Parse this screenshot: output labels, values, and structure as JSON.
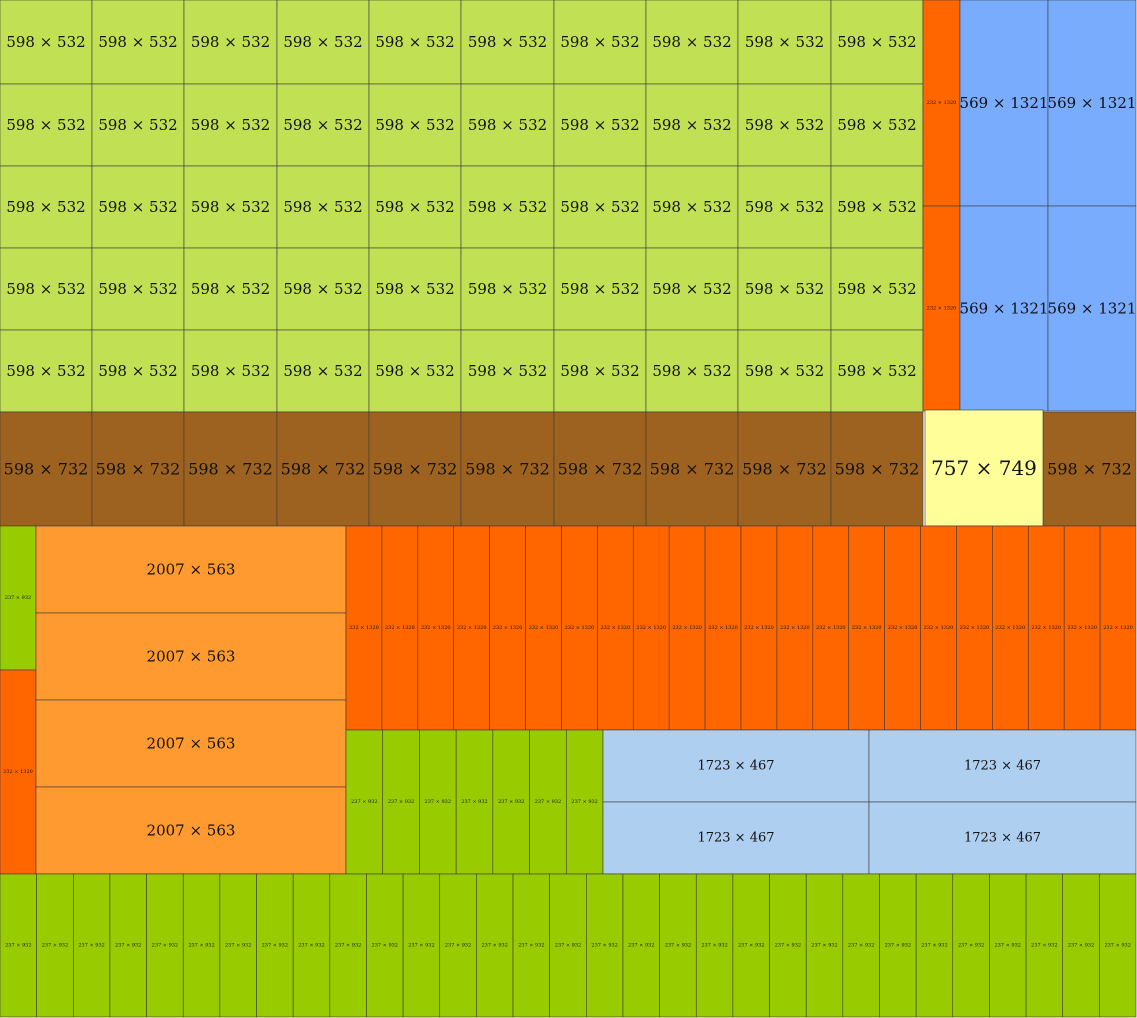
{
  "legend_text": {
    "label_598x532": "598 × 532",
    "label_598x732": "598 × 732",
    "label_569x1321": "569 × 1321",
    "label_232x1320": "232 × 1320",
    "label_757x749": "757 × 749",
    "label_2007x563": "2007 × 563",
    "label_237x932": "237 × 932",
    "label_1723x467": "1723 × 467"
  },
  "colors": {
    "lime": "#c1e053",
    "brown": "#9e6220",
    "orange": "#ff6600",
    "blue": "#7aacfe",
    "yellow": "#fffe99",
    "light_orange": "#fe9a2f",
    "green": "#99cc00",
    "light_blue": "#aecff0"
  },
  "blocks": [
    {
      "name": "grid-598x532",
      "kind": "598x532",
      "count": 50,
      "columns": 10,
      "rows": 5
    },
    {
      "name": "column-232x1320-top",
      "kind": "232x1320",
      "count": 2
    },
    {
      "name": "grid-569x1321",
      "kind": "569x1321",
      "count": 4,
      "columns": 2,
      "rows": 2
    },
    {
      "name": "row-598x732",
      "kind": "598x732",
      "count": 11
    },
    {
      "name": "single-757x749",
      "kind": "757x749",
      "count": 1
    },
    {
      "name": "stack-2007x563",
      "kind": "2007x563",
      "count": 4
    },
    {
      "name": "row-232x1320-middle",
      "kind": "232x1320",
      "count": 22
    },
    {
      "name": "row-237x932-middle",
      "kind": "237x932",
      "count": 7
    },
    {
      "name": "grid-1723x467",
      "kind": "1723x467",
      "count": 4,
      "columns": 2,
      "rows": 2
    },
    {
      "name": "row-237x932-bottom",
      "kind": "237x932",
      "count": 31
    },
    {
      "name": "left-237x932",
      "kind": "237x932",
      "count": 1
    },
    {
      "name": "left-232x1320",
      "kind": "232x1320",
      "count": 1
    }
  ]
}
